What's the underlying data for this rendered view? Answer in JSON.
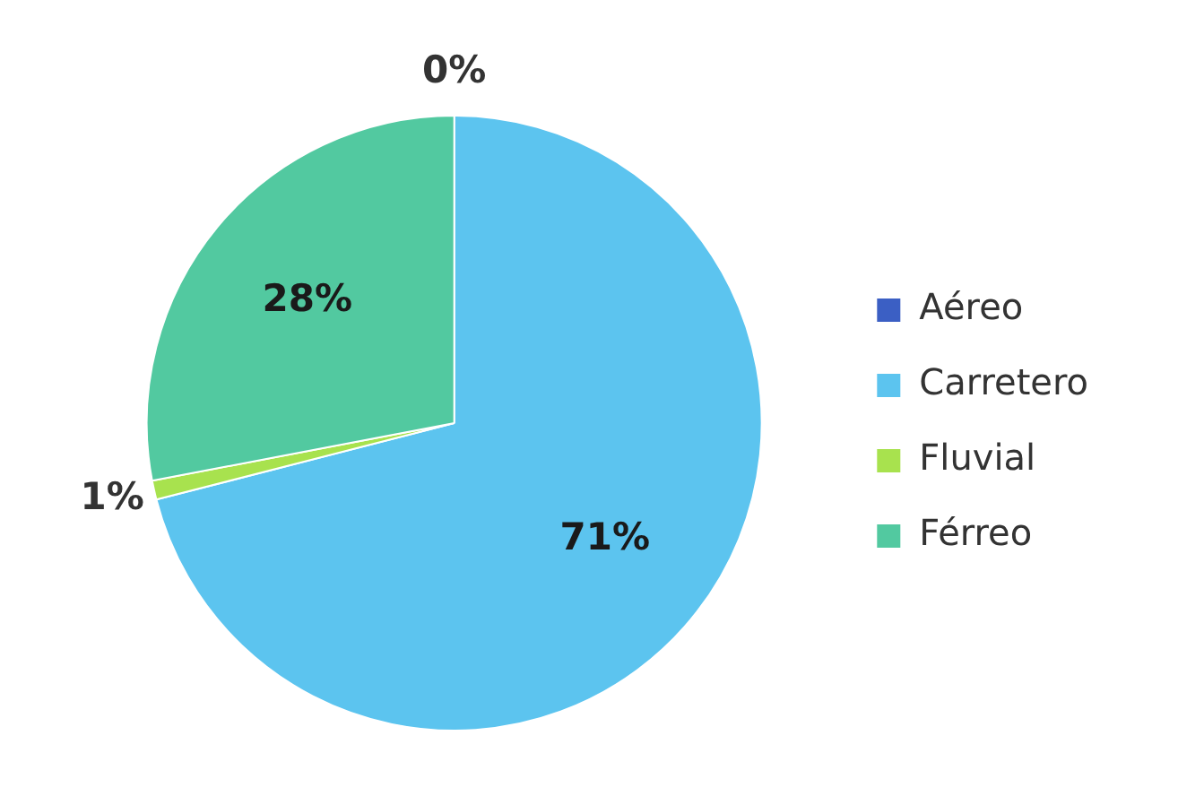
{
  "chart_data": {
    "type": "pie",
    "categories": [
      "Aéreo",
      "Carretero",
      "Fluvial",
      "Férreo"
    ],
    "values": [
      0,
      71,
      1,
      28
    ],
    "colors": [
      "#3b5fc4",
      "#5cc4ef",
      "#a8e24e",
      "#52c9a0"
    ],
    "value_labels": [
      "0%",
      "71%",
      "1%",
      "28%"
    ],
    "legend": "right"
  }
}
